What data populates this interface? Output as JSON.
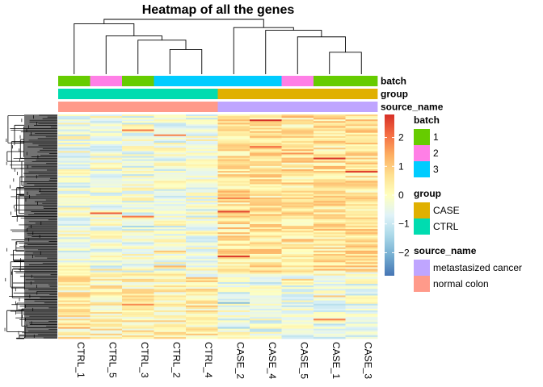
{
  "chart_data": {
    "type": "heatmap",
    "title": "Heatmap of all the genes",
    "columns": [
      "CTRL_1",
      "CTRL_5",
      "CTRL_3",
      "CTRL_2",
      "CTRL_4",
      "CASE_2",
      "CASE_4",
      "CASE_5",
      "CASE_1",
      "CASE_3"
    ],
    "row_count": 135,
    "annotations": [
      {
        "name": "batch",
        "values": [
          "1",
          "2",
          "1",
          "3",
          "3",
          "3",
          "3",
          "2",
          "1",
          "1"
        ]
      },
      {
        "name": "group",
        "values": [
          "CTRL",
          "CTRL",
          "CTRL",
          "CTRL",
          "CTRL",
          "CASE",
          "CASE",
          "CASE",
          "CASE",
          "CASE"
        ]
      },
      {
        "name": "source_name",
        "values": [
          "normal colon",
          "normal colon",
          "normal colon",
          "normal colon",
          "normal colon",
          "metastasized cancer",
          "metastasized cancer",
          "metastasized cancer",
          "metastasized cancer",
          "metastasized cancer"
        ]
      }
    ],
    "color_scale": {
      "min": -2.8,
      "max": 2.8,
      "ticks": [
        2,
        1,
        0,
        -1,
        -2
      ],
      "tick_labels": [
        "2",
        "1",
        "0",
        "−1",
        "−2"
      ],
      "colors": [
        "#4575b4",
        "#74add1",
        "#abd9e9",
        "#e0f3f8",
        "#ffffbf",
        "#fee090",
        "#fdae61",
        "#f46d43",
        "#d73027"
      ]
    },
    "legends": [
      {
        "title": "batch",
        "items": [
          {
            "label": "1",
            "color": "#66cc00"
          },
          {
            "label": "2",
            "color": "#ff7fe6"
          },
          {
            "label": "3",
            "color": "#00ccff"
          }
        ]
      },
      {
        "title": "group",
        "items": [
          {
            "label": "CASE",
            "color": "#e0b000"
          },
          {
            "label": "CTRL",
            "color": "#00dcb0"
          }
        ]
      },
      {
        "title": "source_name",
        "items": [
          {
            "label": "metastasized cancer",
            "color": "#bfa5ff"
          },
          {
            "label": "normal colon",
            "color": "#ff9a8a"
          }
        ]
      }
    ],
    "column_dendrogram": [
      {
        "left": 3,
        "right": 4,
        "height": 0.45
      },
      {
        "left": 2,
        "right": "n0",
        "height": 0.62
      },
      {
        "left": 1,
        "right": "n1",
        "height": 0.7
      },
      {
        "left": 0,
        "right": "n2",
        "height": 0.92
      },
      {
        "left": 8,
        "right": 9,
        "height": 0.4
      },
      {
        "left": 7,
        "right": "n4",
        "height": 0.68
      },
      {
        "left": 6,
        "right": "n5",
        "height": 0.8
      },
      {
        "left": 5,
        "right": "n6",
        "height": 0.85
      },
      {
        "left": "n3",
        "right": "n7",
        "height": 1.0
      }
    ]
  }
}
